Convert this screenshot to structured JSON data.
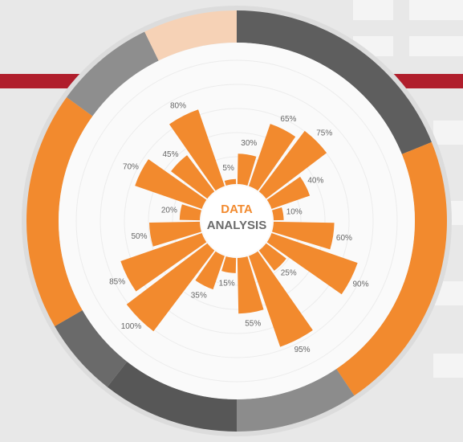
{
  "chart_data": {
    "type": "polar_bar",
    "title_lines": [
      "DATA",
      "ANALYSIS"
    ],
    "values": [
      30,
      65,
      75,
      40,
      10,
      60,
      90,
      25,
      95,
      55,
      15,
      35,
      100,
      85,
      50,
      20,
      70,
      45,
      80,
      5
    ],
    "value_labels": [
      "30%",
      "65%",
      "75%",
      "40%",
      "10%",
      "60%",
      "90%",
      "25%",
      "95%",
      "55%",
      "15%",
      "35%",
      "100%",
      "85%",
      "50%",
      "20%",
      "70%",
      "45%",
      "80%",
      "5%"
    ],
    "ylim": [
      0,
      100
    ],
    "color": "#f28a2e"
  }
}
